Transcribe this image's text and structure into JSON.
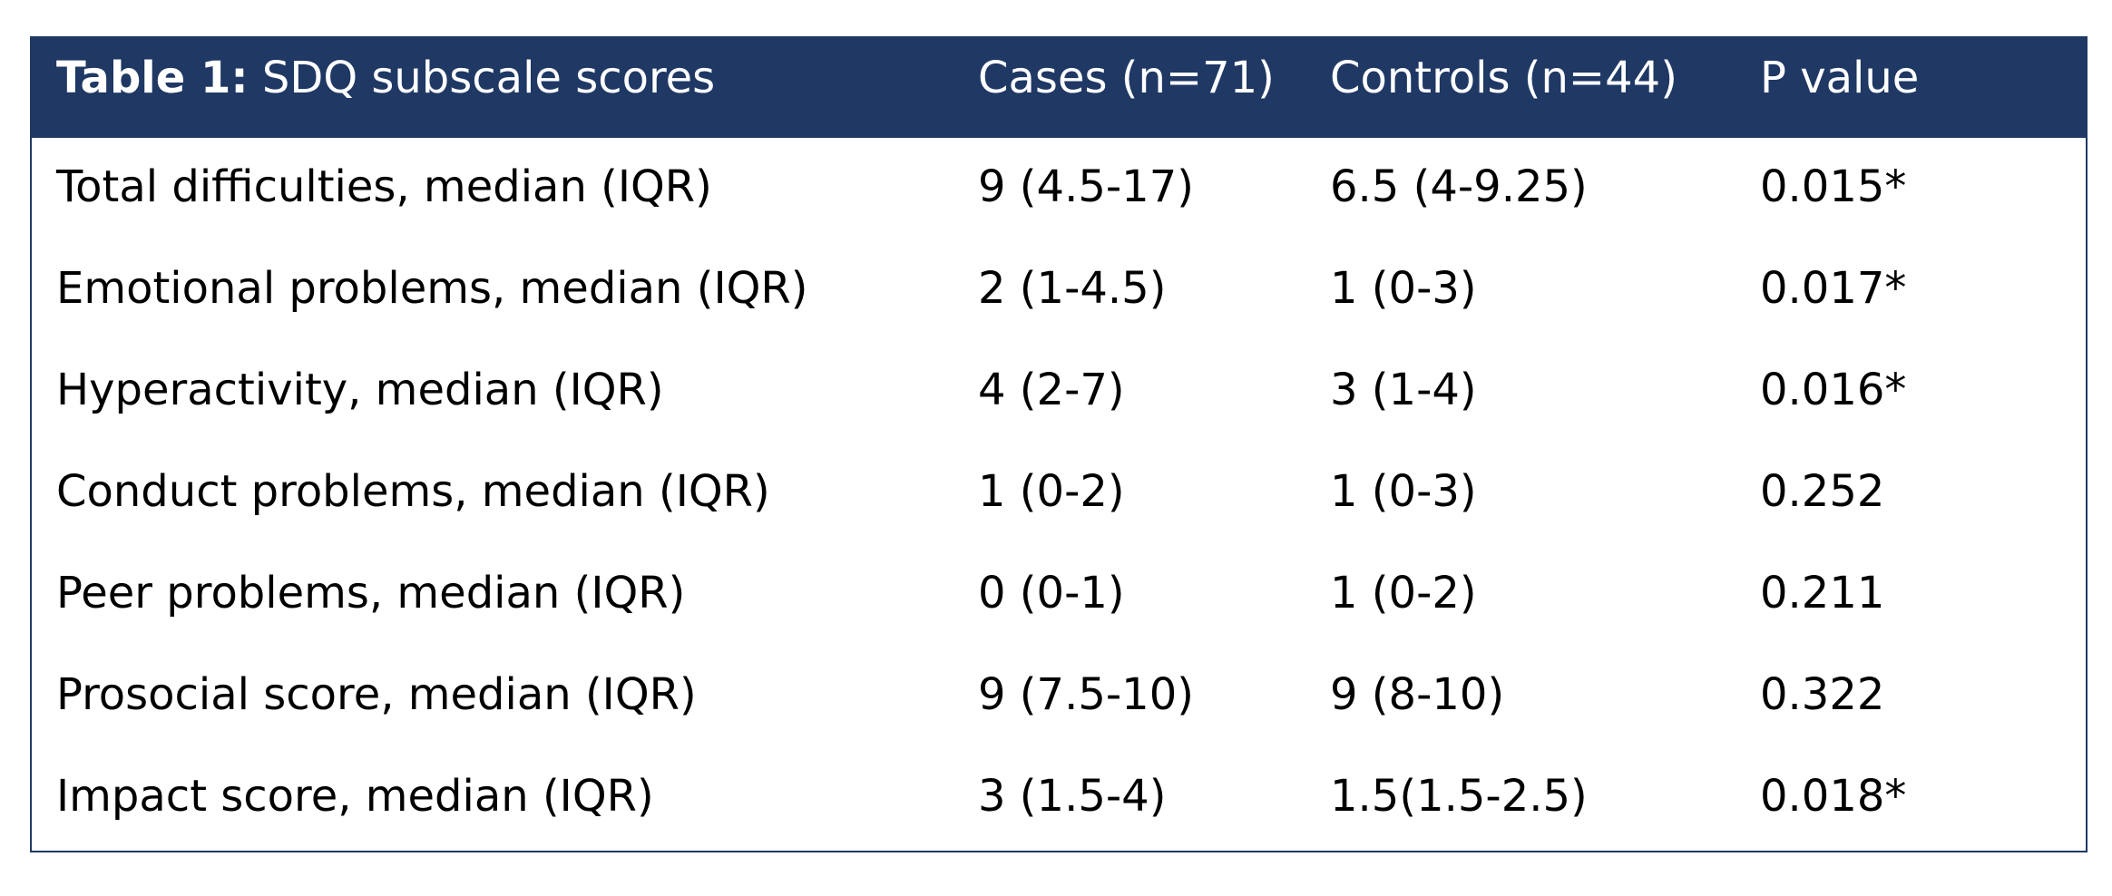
{
  "table": {
    "caption_bold": "Table 1:",
    "caption_rest": " SDQ subscale scores",
    "headers": [
      "Cases (n=71)",
      "Controls (n=44)",
      "P value"
    ],
    "rows": [
      {
        "label": "Total difficulties, median (IQR)",
        "cases": "9 (4.5-17)",
        "controls": "6.5 (4-9.25)",
        "p": "0.015*"
      },
      {
        "label": "Emotional problems, median (IQR)",
        "cases": "2 (1-4.5)",
        "controls": "1 (0-3)",
        "p": "0.017*"
      },
      {
        "label": "Hyperactivity, median (IQR)",
        "cases": "4 (2-7)",
        "controls": "3 (1-4)",
        "p": "0.016*"
      },
      {
        "label": "Conduct problems, median (IQR)",
        "cases": "1 (0-2)",
        "controls": "1 (0-3)",
        "p": "0.252"
      },
      {
        "label": "Peer problems, median (IQR)",
        "cases": "0 (0-1)",
        "controls": "1 (0-2)",
        "p": "0.211"
      },
      {
        "label": "Prosocial score, median (IQR)",
        "cases": "9 (7.5-10)",
        "controls": "9 (8-10)",
        "p": "0.322"
      },
      {
        "label": "Impact score, median (IQR)",
        "cases": "3 (1.5-4)",
        "controls": "1.5(1.5-2.5)",
        "p": "0.018*"
      }
    ]
  },
  "colors": {
    "header_bg": "#1f3864",
    "header_text": "#ffffff",
    "body_text": "#000000"
  }
}
